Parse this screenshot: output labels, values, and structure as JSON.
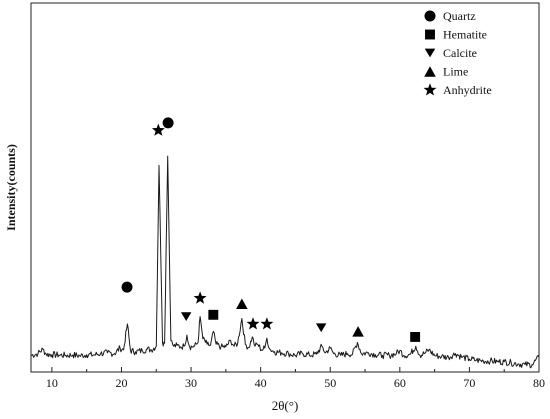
{
  "chart_data": {
    "type": "line",
    "title": "",
    "xlabel": "2θ(°)",
    "ylabel": "Intensity(counts)",
    "xlim": [
      7,
      80
    ],
    "x_ticks": [
      10,
      20,
      30,
      40,
      50,
      60,
      70,
      80
    ],
    "x_tick_labels": [
      "10",
      "20",
      "30",
      "40",
      "50",
      "60",
      "70",
      "80"
    ],
    "y_ticks_labeled": false,
    "grid": false,
    "legend_position": "top-right",
    "series": [
      {
        "values": [
          [
            7.0,
            0.045
          ],
          [
            8.0,
            0.05
          ],
          [
            8.7,
            0.062
          ],
          [
            9.2,
            0.048
          ],
          [
            10.0,
            0.047
          ],
          [
            11.0,
            0.046
          ],
          [
            12.0,
            0.045
          ],
          [
            13.0,
            0.046
          ],
          [
            14.0,
            0.044
          ],
          [
            15.0,
            0.047
          ],
          [
            16.0,
            0.046
          ],
          [
            17.0,
            0.05
          ],
          [
            18.0,
            0.052
          ],
          [
            19.0,
            0.05
          ],
          [
            19.8,
            0.065
          ],
          [
            20.3,
            0.06
          ],
          [
            20.85,
            0.13
          ],
          [
            21.3,
            0.058
          ],
          [
            22.0,
            0.055
          ],
          [
            23.0,
            0.058
          ],
          [
            23.7,
            0.062
          ],
          [
            24.3,
            0.06
          ],
          [
            25.0,
            0.07
          ],
          [
            25.4,
            0.56
          ],
          [
            25.9,
            0.08
          ],
          [
            26.2,
            0.078
          ],
          [
            26.64,
            0.585
          ],
          [
            27.1,
            0.085
          ],
          [
            27.5,
            0.07
          ],
          [
            28.0,
            0.072
          ],
          [
            28.5,
            0.068
          ],
          [
            29.0,
            0.07
          ],
          [
            29.4,
            0.1
          ],
          [
            29.8,
            0.068
          ],
          [
            30.5,
            0.07
          ],
          [
            31.0,
            0.08
          ],
          [
            31.3,
            0.15
          ],
          [
            31.7,
            0.09
          ],
          [
            32.3,
            0.075
          ],
          [
            32.8,
            0.072
          ],
          [
            33.2,
            0.11
          ],
          [
            33.6,
            0.075
          ],
          [
            34.3,
            0.068
          ],
          [
            35.0,
            0.068
          ],
          [
            35.7,
            0.085
          ],
          [
            36.2,
            0.07
          ],
          [
            36.7,
            0.078
          ],
          [
            37.3,
            0.145
          ],
          [
            37.8,
            0.075
          ],
          [
            38.3,
            0.066
          ],
          [
            38.8,
            0.095
          ],
          [
            39.2,
            0.07
          ],
          [
            39.6,
            0.075
          ],
          [
            40.1,
            0.06
          ],
          [
            40.6,
            0.065
          ],
          [
            40.9,
            0.092
          ],
          [
            41.3,
            0.062
          ],
          [
            42.0,
            0.055
          ],
          [
            43.0,
            0.052
          ],
          [
            44.0,
            0.05
          ],
          [
            45.0,
            0.045
          ],
          [
            46.0,
            0.05
          ],
          [
            47.0,
            0.046
          ],
          [
            48.0,
            0.048
          ],
          [
            48.8,
            0.07
          ],
          [
            49.3,
            0.052
          ],
          [
            50.0,
            0.065
          ],
          [
            50.5,
            0.05
          ],
          [
            51.5,
            0.045
          ],
          [
            52.5,
            0.05
          ],
          [
            53.2,
            0.048
          ],
          [
            53.9,
            0.08
          ],
          [
            54.5,
            0.05
          ],
          [
            55.5,
            0.052
          ],
          [
            56.5,
            0.047
          ],
          [
            57.5,
            0.045
          ],
          [
            58.5,
            0.045
          ],
          [
            59.5,
            0.05
          ],
          [
            60.0,
            0.058
          ],
          [
            60.6,
            0.045
          ],
          [
            61.5,
            0.048
          ],
          [
            62.3,
            0.07
          ],
          [
            62.9,
            0.045
          ],
          [
            63.5,
            0.05
          ],
          [
            64.2,
            0.06
          ],
          [
            65.0,
            0.045
          ],
          [
            66.0,
            0.042
          ],
          [
            67.0,
            0.04
          ],
          [
            68.0,
            0.05
          ],
          [
            69.0,
            0.04
          ],
          [
            70.0,
            0.035
          ],
          [
            71.0,
            0.032
          ],
          [
            72.0,
            0.03
          ],
          [
            73.0,
            0.03
          ],
          [
            74.0,
            0.028
          ],
          [
            75.0,
            0.028
          ],
          [
            76.0,
            0.025
          ],
          [
            77.0,
            0.022
          ],
          [
            78.0,
            0.02
          ],
          [
            79.0,
            0.02
          ],
          [
            80.0,
            0.04
          ]
        ]
      }
    ],
    "legend": [
      {
        "label": "Quartz",
        "marker": "circle"
      },
      {
        "label": "Hematite",
        "marker": "square"
      },
      {
        "label": "Calcite",
        "marker": "triangle-down"
      },
      {
        "label": "Lime",
        "marker": "triangle-up"
      },
      {
        "label": "Anhydrite",
        "marker": "star"
      }
    ],
    "peak_markers": [
      {
        "marker": "star",
        "x": 25.3,
        "y": 0.655
      },
      {
        "marker": "circle",
        "x": 26.7,
        "y": 0.675
      },
      {
        "marker": "circle",
        "x": 20.8,
        "y": 0.23
      },
      {
        "marker": "triangle-down",
        "x": 29.3,
        "y": 0.15
      },
      {
        "marker": "star",
        "x": 31.3,
        "y": 0.2
      },
      {
        "marker": "square",
        "x": 33.2,
        "y": 0.155
      },
      {
        "marker": "triangle-up",
        "x": 37.3,
        "y": 0.185
      },
      {
        "marker": "star",
        "x": 38.9,
        "y": 0.13
      },
      {
        "marker": "star",
        "x": 40.9,
        "y": 0.13
      },
      {
        "marker": "triangle-down",
        "x": 48.7,
        "y": 0.12
      },
      {
        "marker": "triangle-up",
        "x": 54.0,
        "y": 0.11
      },
      {
        "marker": "square",
        "x": 62.2,
        "y": 0.095
      }
    ]
  },
  "colors": {
    "line": "#1a1a1a",
    "axis": "#222222",
    "marker": "#000000",
    "background": "#ffffff"
  }
}
